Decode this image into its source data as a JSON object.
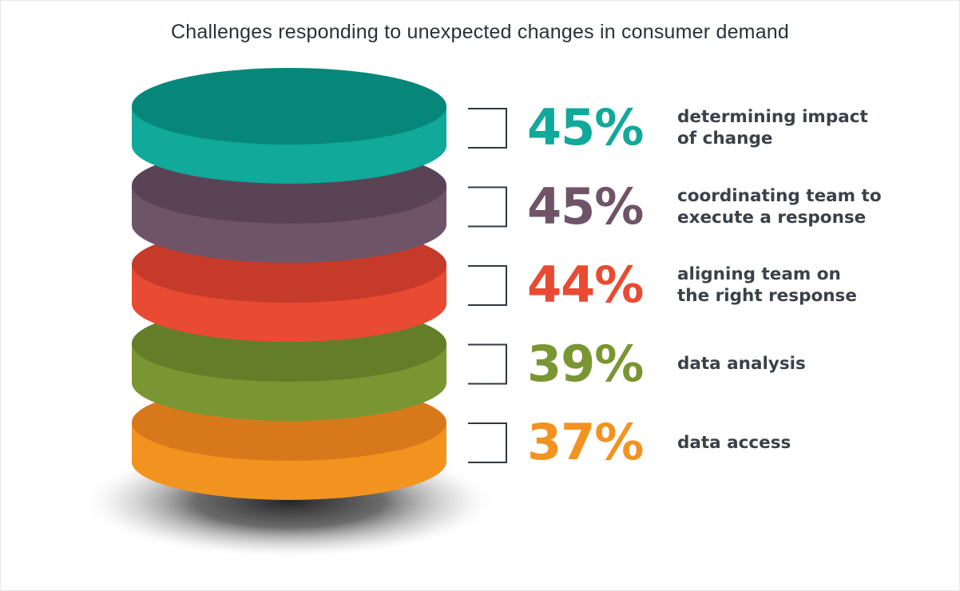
{
  "title": "Challenges responding to unexpected changes in consumer demand",
  "chart_data": {
    "type": "bar",
    "title": "Challenges responding to unexpected changes in consumer demand",
    "categories": [
      "determining impact of change",
      "coordinating team to execute a response",
      "aligning team on the right response",
      "data analysis",
      "data access"
    ],
    "values": [
      45,
      45,
      44,
      39,
      37
    ],
    "value_labels": [
      "45%",
      "45%",
      "44%",
      "39%",
      "37%"
    ],
    "unit": "%",
    "colors": [
      "#10a99a",
      "#6f5467",
      "#e94a32",
      "#7a9632",
      "#f3931f"
    ],
    "top_colors": [
      "#07877a",
      "#5b4356",
      "#c63a2a",
      "#647d28",
      "#d7791b"
    ],
    "legend": "right",
    "grid": false
  }
}
